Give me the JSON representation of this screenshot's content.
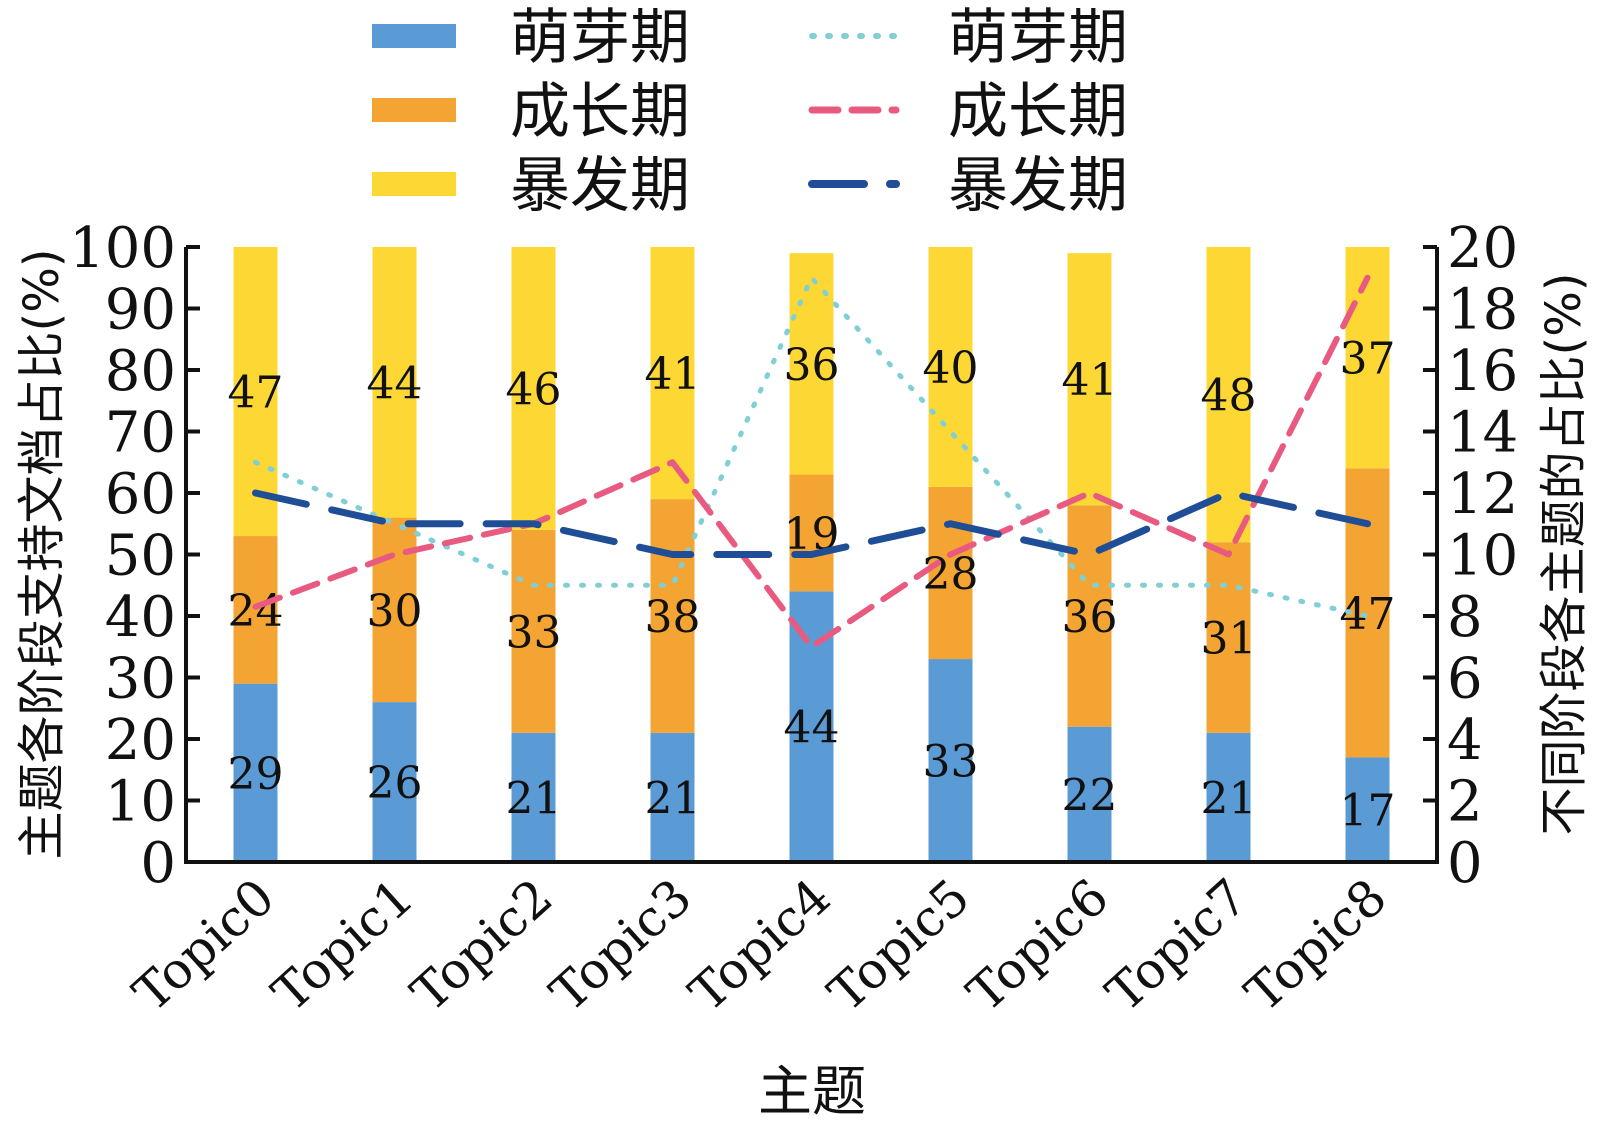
{
  "chart_data": {
    "type": "bar",
    "stacked": true,
    "categories": [
      "Topic0",
      "Topic1",
      "Topic2",
      "Topic3",
      "Topic4",
      "Topic5",
      "Topic6",
      "Topic7",
      "Topic8"
    ],
    "xlabel": "主题",
    "ylabel": "主题各阶段支持文档占比(%)",
    "ylabel_right": "不同阶段各主题的占比(%)",
    "ylim": [
      0,
      100
    ],
    "ylim_right": [
      0,
      20
    ],
    "yticks": [
      0,
      10,
      20,
      30,
      40,
      50,
      60,
      70,
      80,
      90,
      100
    ],
    "yticks_right": [
      0,
      2,
      4,
      6,
      8,
      10,
      12,
      14,
      16,
      18,
      20
    ],
    "legend_position": "top",
    "bar_series": [
      {
        "name": "萌芽期",
        "color": "#5b9bd5",
        "values": [
          29,
          26,
          21,
          21,
          44,
          33,
          22,
          21,
          17
        ],
        "labels": [
          "29",
          "26",
          "21",
          "21",
          "44",
          "33",
          "22",
          "21",
          "17"
        ]
      },
      {
        "name": "成长期",
        "color": "#f4a433",
        "values": [
          24,
          30,
          33,
          38,
          19,
          28,
          36,
          31,
          47
        ],
        "labels": [
          "24",
          "30",
          "33",
          "38",
          "19",
          "28",
          "36",
          "31",
          "47"
        ]
      },
      {
        "name": "暴发期",
        "color": "#fdd835",
        "values": [
          47,
          44,
          46,
          41,
          36,
          40,
          41,
          48,
          37
        ],
        "labels": [
          "47",
          "44",
          "46",
          "41",
          "36",
          "40",
          "41",
          "48",
          "37"
        ]
      }
    ],
    "line_series": [
      {
        "name": "萌芽期",
        "color": "#7fcfd6",
        "style": "dotted",
        "axis": "right",
        "values": [
          13,
          11,
          9,
          9,
          19,
          14,
          9,
          9,
          8
        ]
      },
      {
        "name": "成长期",
        "color": "#e85a7f",
        "style": "dashed",
        "axis": "right",
        "values": [
          8.3,
          10,
          11,
          13,
          7,
          10,
          12,
          10,
          19
        ]
      },
      {
        "name": "暴发期",
        "color": "#1f4e96",
        "style": "longdash",
        "axis": "right",
        "values": [
          12,
          11,
          11,
          10,
          10,
          11,
          10,
          12,
          11
        ]
      }
    ]
  }
}
